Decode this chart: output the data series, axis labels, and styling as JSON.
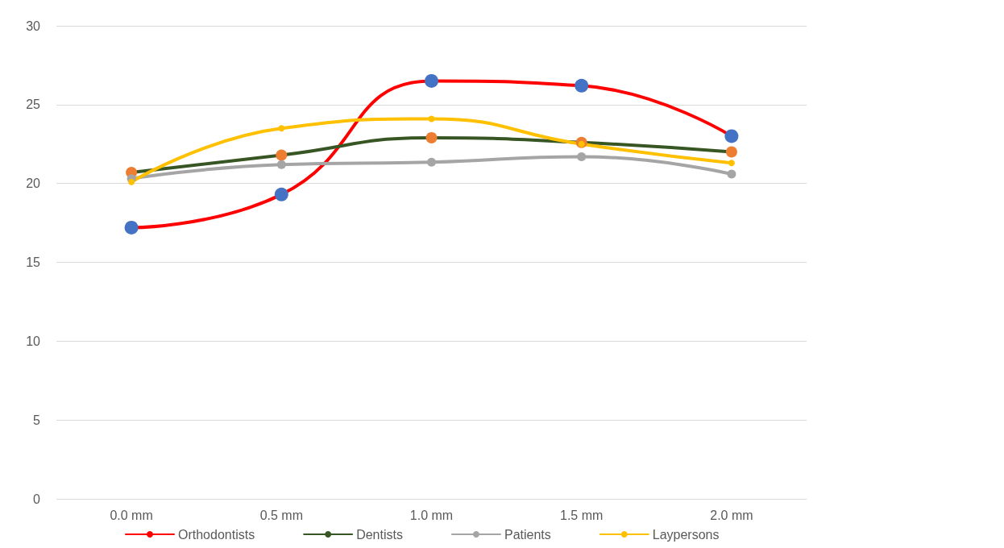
{
  "chart_data": {
    "type": "line",
    "categories": [
      "0.0 mm",
      "0.5 mm",
      "1.0 mm",
      "1.5 mm",
      "2.0 mm"
    ],
    "series": [
      {
        "name": "Orthodontists",
        "color": "#ff0000",
        "colors": [
          "#4472c4",
          "#4472c4",
          "#4472c4",
          "#4472c4",
          "#4472c4"
        ],
        "values": [
          17.2,
          19.3,
          26.5,
          26.2,
          23.0
        ]
      },
      {
        "name": "Dentists",
        "color": "#375623",
        "colors": [
          "#ed7d31",
          "#ed7d31",
          "#ed7d31",
          "#ed7d31",
          "#ed7d31"
        ],
        "values": [
          20.7,
          21.8,
          22.9,
          22.6,
          22.0
        ]
      },
      {
        "name": "Patients",
        "color": "#a5a5a5",
        "colors": [
          "#a5a5a5",
          "#a5a5a5",
          "#a5a5a5",
          "#a5a5a5",
          "#a5a5a5"
        ],
        "values": [
          20.3,
          21.2,
          21.35,
          21.7,
          20.6
        ]
      },
      {
        "name": "Laypersons",
        "color": "#ffc000",
        "colors": [
          "#ffc000",
          "#ffc000",
          "#ffc000",
          "#ffc000",
          "#ffc000"
        ],
        "values": [
          20.1,
          23.5,
          24.1,
          22.5,
          21.3
        ]
      }
    ],
    "ylim": [
      0,
      30
    ],
    "yticks": [
      0,
      5,
      10,
      15,
      20,
      25,
      30
    ],
    "grid": "y",
    "legend": "bottom",
    "marker": "circle",
    "line_style": "solid"
  }
}
